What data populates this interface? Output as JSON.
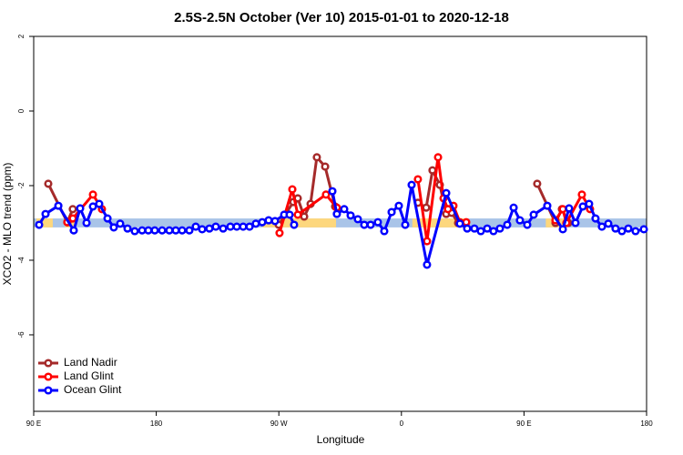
{
  "chart_data": {
    "type": "line",
    "title": "2.5S-2.5N October (Ver 10)   2015-01-01 to 2020-12-18",
    "x_label": "Longitude",
    "y_label": "XCO2 - MLO trend (ppm)",
    "xlim": [
      90,
      540
    ],
    "ylim": [
      -8.05,
      2
    ],
    "xticks": [
      {
        "value": 90,
        "label": "90 E"
      },
      180,
      {
        "value": 270,
        "label": "90 W"
      },
      {
        "value": 360,
        "label": "0"
      },
      {
        "value": 450,
        "label": "90 E"
      },
      {
        "value": 540,
        "label": "180"
      }
    ],
    "yticks": [
      -6,
      -4,
      -2,
      0,
      2
    ],
    "legend_position": "bottom-left",
    "surface_band": {
      "range": [
        -3.12,
        -2.88
      ],
      "ocean_color": "#a9c4e8",
      "land_color": "#fdd77d",
      "land_segments": [
        [
          92,
          104
        ],
        [
          113,
          121
        ],
        [
          258,
          312
        ],
        [
          368,
          407
        ],
        [
          466,
          482
        ]
      ]
    },
    "series": [
      {
        "name": "Land Nadir",
        "color": "#a52a2a",
        "x": [
          100.7,
          114.7,
          118.7,
          null,
          269.9,
          280.6,
          283.9,
          288.6,
          293.3,
          297.9,
          304.0,
          311.3,
          null,
          372.1,
          378.2,
          382.8,
          388.2,
          392.9,
          396.9,
          401.6,
          null,
          459.7,
          473.1,
          477.8,
          482.5
        ],
        "values": [
          -1.95,
          -2.98,
          -2.63,
          null,
          -3.05,
          -2.44,
          -2.34,
          -2.83,
          -2.49,
          -1.24,
          -1.49,
          -2.56,
          null,
          -2.46,
          -2.59,
          -1.59,
          -1.98,
          -2.76,
          -2.73,
          -3.0,
          null,
          -1.95,
          -3.0,
          -2.63,
          -3.0
        ]
      },
      {
        "name": "Land Glint",
        "color": "#ff0000",
        "x": [
          114.7,
          118.7,
          133.5,
          140.1,
          null,
          270.5,
          279.9,
          283.9,
          304.6,
          312.6,
          null,
          372.1,
          378.8,
          386.9,
          390.9,
          394.2,
          398.2,
          402.9,
          407.6,
          null,
          473.1,
          478.5,
          481.1,
          492.5,
          498.5
        ],
        "values": [
          -2.98,
          -2.88,
          -2.24,
          -2.63,
          null,
          -3.27,
          -2.1,
          -2.78,
          -2.24,
          -2.59,
          null,
          -1.83,
          -3.49,
          -1.24,
          -2.34,
          -2.63,
          -2.54,
          -2.98,
          -2.98,
          null,
          -2.93,
          -2.63,
          -3.0,
          -2.24,
          -2.63
        ]
      },
      {
        "name": "Ocean Glint",
        "color": "#0000ff",
        "x": [
          94.0,
          98.7,
          108.1,
          119.4,
          124.1,
          128.8,
          133.5,
          138.1,
          144.2,
          148.8,
          153.5,
          158.9,
          164.2,
          169.6,
          174.2,
          178.9,
          184.3,
          189.6,
          194.3,
          199.0,
          204.3,
          209.0,
          213.7,
          219.0,
          223.7,
          229.1,
          234.4,
          239.1,
          243.8,
          248.5,
          253.1,
          257.8,
          262.5,
          267.2,
          273.9,
          277.9,
          281.2,
          null,
          309.3,
          312.6,
          318.0,
          322.7,
          328.0,
          332.7,
          337.4,
          342.7,
          347.4,
          352.8,
          358.1,
          362.8,
          367.5,
          378.8,
          392.9,
          402.9,
          408.3,
          413.6,
          418.3,
          423.0,
          427.6,
          432.3,
          437.7,
          442.4,
          447.0,
          452.4,
          457.1,
          467.1,
          478.5,
          483.1,
          487.8,
          493.2,
          497.8,
          502.5,
          507.2,
          511.9,
          517.2,
          521.9,
          526.6,
          531.9,
          538.0
        ],
        "values": [
          -3.05,
          -2.76,
          -2.54,
          -3.2,
          -2.61,
          -3.0,
          -2.56,
          -2.49,
          -2.88,
          -3.12,
          -3.02,
          -3.15,
          -3.22,
          -3.2,
          -3.2,
          -3.2,
          -3.2,
          -3.2,
          -3.2,
          -3.2,
          -3.2,
          -3.1,
          -3.17,
          -3.15,
          -3.1,
          -3.15,
          -3.1,
          -3.1,
          -3.1,
          -3.1,
          -3.02,
          -2.98,
          -2.93,
          -2.95,
          -2.78,
          -2.78,
          -3.05,
          null,
          -2.15,
          -2.76,
          -2.63,
          -2.8,
          -2.9,
          -3.05,
          -3.05,
          -2.98,
          -3.22,
          -2.71,
          -2.54,
          -3.05,
          -1.98,
          -4.12,
          -2.2,
          -3.02,
          -3.15,
          -3.15,
          -3.22,
          -3.15,
          -3.22,
          -3.15,
          -3.05,
          -2.59,
          -2.93,
          -3.05,
          -2.78,
          -2.54,
          -3.17,
          -2.61,
          -3.0,
          -2.56,
          -2.49,
          -2.88,
          -3.1,
          -3.02,
          -3.15,
          -3.22,
          -3.15,
          -3.22,
          -3.17
        ]
      }
    ]
  }
}
